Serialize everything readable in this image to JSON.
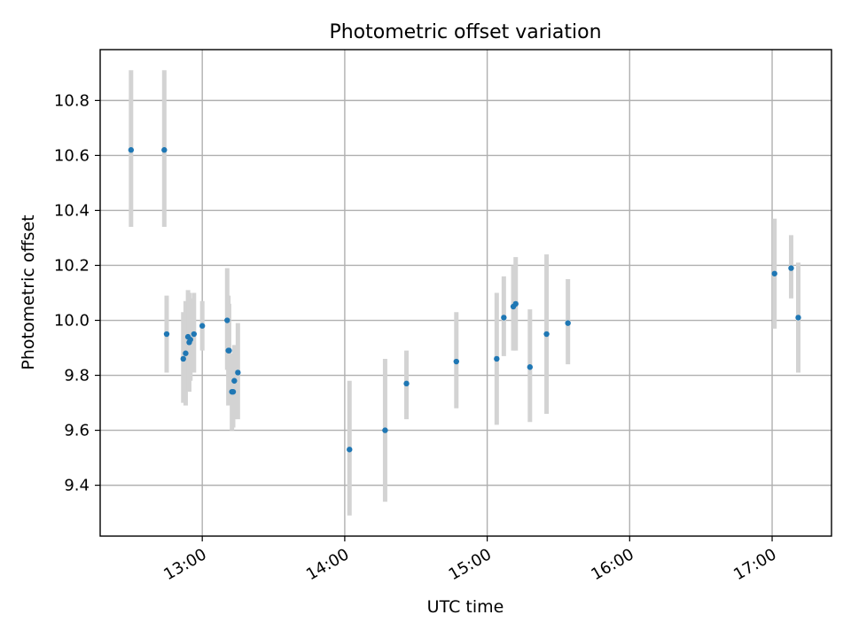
{
  "chart_data": {
    "type": "scatter",
    "title": "Photometric offset variation",
    "xlabel": "UTC time",
    "ylabel": "Photometric offset",
    "x_is_time": true,
    "xlim": [
      "12:17",
      "17:25"
    ],
    "ylim": [
      9.215,
      10.985
    ],
    "xticks": [
      "13:00",
      "14:00",
      "15:00",
      "16:00",
      "17:00"
    ],
    "yticks": [
      9.4,
      9.6,
      9.8,
      10.0,
      10.2,
      10.4,
      10.6,
      10.8
    ],
    "grid": true,
    "legend": "none",
    "series": [
      {
        "marker_color": "#1f77b4",
        "errorbar_color": "#d3d3d3",
        "points": [
          {
            "x": "12:30",
            "y": 10.62,
            "ylo": 10.34,
            "yhi": 10.91
          },
          {
            "x": "12:44",
            "y": 10.62,
            "ylo": 10.34,
            "yhi": 10.91
          },
          {
            "x": "12:45",
            "y": 9.95,
            "ylo": 9.81,
            "yhi": 10.09
          },
          {
            "x": "12:52",
            "y": 9.86,
            "ylo": 9.7,
            "yhi": 10.03
          },
          {
            "x": "12:53",
            "y": 9.88,
            "ylo": 9.69,
            "yhi": 10.07
          },
          {
            "x": "12:54",
            "y": 9.94,
            "ylo": 9.78,
            "yhi": 10.11
          },
          {
            "x": "12:54.5",
            "y": 9.92,
            "ylo": 9.74,
            "yhi": 10.1
          },
          {
            "x": "12:55",
            "y": 9.93,
            "ylo": 9.78,
            "yhi": 10.08
          },
          {
            "x": "12:56.5",
            "y": 9.95,
            "ylo": 9.81,
            "yhi": 10.1
          },
          {
            "x": "13:00",
            "y": 9.98,
            "ylo": 9.89,
            "yhi": 10.07
          },
          {
            "x": "13:10.5",
            "y": 10.0,
            "ylo": 9.82,
            "yhi": 10.19
          },
          {
            "x": "13:11",
            "y": 9.89,
            "ylo": 9.69,
            "yhi": 10.09
          },
          {
            "x": "13:11.3",
            "y": 9.89,
            "ylo": 9.73,
            "yhi": 10.06
          },
          {
            "x": "13:12.5",
            "y": 9.74,
            "ylo": 9.6,
            "yhi": 9.88
          },
          {
            "x": "13:13",
            "y": 9.74,
            "ylo": 9.61,
            "yhi": 9.87
          },
          {
            "x": "13:13.5",
            "y": 9.78,
            "ylo": 9.64,
            "yhi": 9.91
          },
          {
            "x": "13:15",
            "y": 9.81,
            "ylo": 9.64,
            "yhi": 9.99
          },
          {
            "x": "14:02",
            "y": 9.53,
            "ylo": 9.29,
            "yhi": 9.78
          },
          {
            "x": "14:17",
            "y": 9.6,
            "ylo": 9.34,
            "yhi": 9.86
          },
          {
            "x": "14:26",
            "y": 9.77,
            "ylo": 9.64,
            "yhi": 9.89
          },
          {
            "x": "14:47",
            "y": 9.85,
            "ylo": 9.68,
            "yhi": 10.03
          },
          {
            "x": "15:04",
            "y": 9.86,
            "ylo": 9.62,
            "yhi": 10.1
          },
          {
            "x": "15:07",
            "y": 10.01,
            "ylo": 9.87,
            "yhi": 10.16
          },
          {
            "x": "15:11",
            "y": 10.05,
            "ylo": 9.89,
            "yhi": 10.2
          },
          {
            "x": "15:12",
            "y": 10.06,
            "ylo": 9.89,
            "yhi": 10.23
          },
          {
            "x": "15:18",
            "y": 9.83,
            "ylo": 9.63,
            "yhi": 10.04
          },
          {
            "x": "15:25",
            "y": 9.95,
            "ylo": 9.66,
            "yhi": 10.24
          },
          {
            "x": "15:34",
            "y": 9.99,
            "ylo": 9.84,
            "yhi": 10.15
          },
          {
            "x": "17:01",
            "y": 10.17,
            "ylo": 9.97,
            "yhi": 10.37
          },
          {
            "x": "17:08",
            "y": 10.19,
            "ylo": 10.08,
            "yhi": 10.31
          },
          {
            "x": "17:11",
            "y": 10.01,
            "ylo": 9.81,
            "yhi": 10.21
          }
        ]
      }
    ]
  }
}
